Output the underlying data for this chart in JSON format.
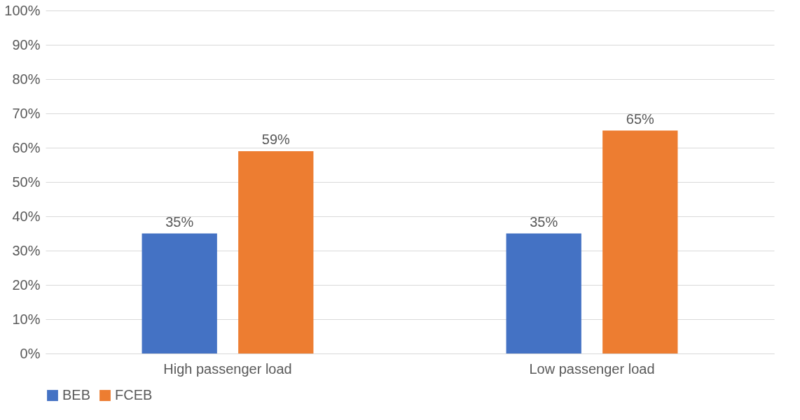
{
  "chart_data": {
    "type": "bar",
    "categories": [
      "High passenger load",
      "Low passenger load"
    ],
    "series": [
      {
        "name": "BEB",
        "color": "#4472c4",
        "values": [
          35,
          35
        ],
        "value_labels": [
          "35%",
          "35%"
        ]
      },
      {
        "name": "FCEB",
        "color": "#ed7d31",
        "values": [
          59,
          65
        ],
        "value_labels": [
          "59%",
          "65%"
        ]
      }
    ],
    "ylim": [
      0,
      100
    ],
    "yticks": [
      {
        "value": 0,
        "label": "0%"
      },
      {
        "value": 10,
        "label": "10%"
      },
      {
        "value": 20,
        "label": "20%"
      },
      {
        "value": 30,
        "label": "30%"
      },
      {
        "value": 40,
        "label": "40%"
      },
      {
        "value": 50,
        "label": "50%"
      },
      {
        "value": 60,
        "label": "60%"
      },
      {
        "value": 70,
        "label": "70%"
      },
      {
        "value": 80,
        "label": "80%"
      },
      {
        "value": 90,
        "label": "90%"
      },
      {
        "value": 100,
        "label": "100%"
      }
    ],
    "grid": "y",
    "legend": "bottom"
  }
}
